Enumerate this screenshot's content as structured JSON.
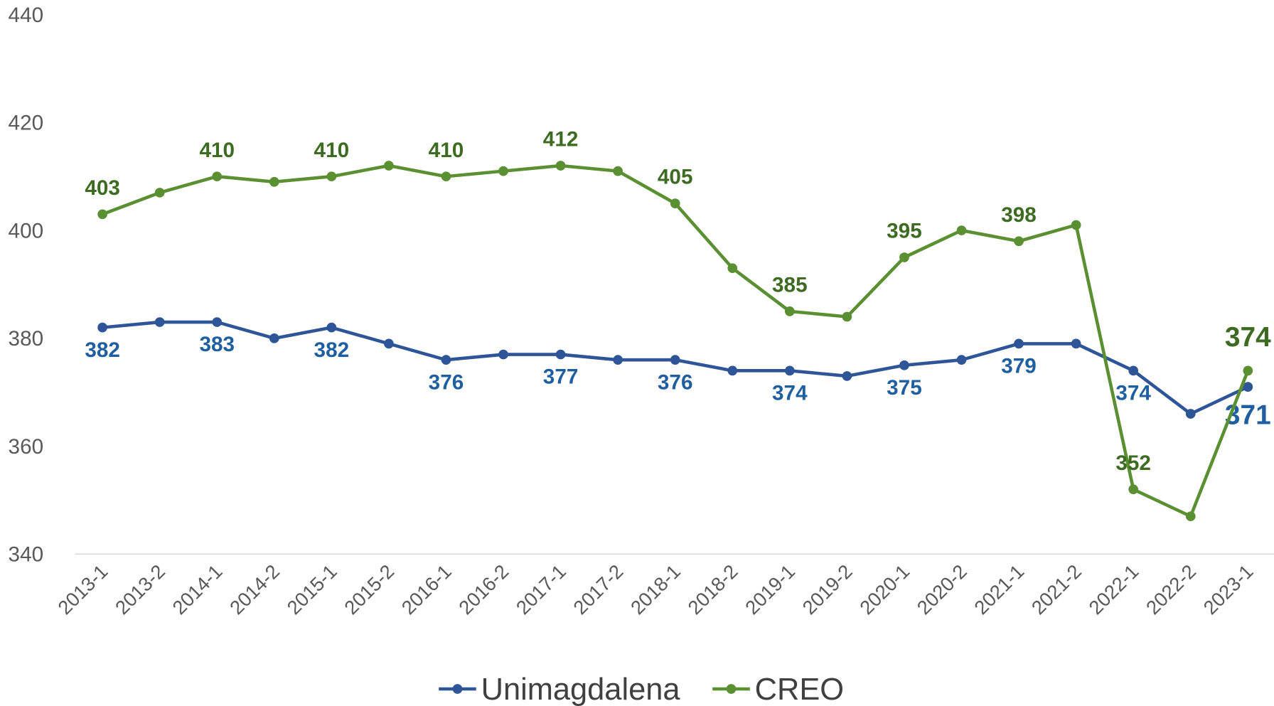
{
  "chart_data": {
    "type": "line",
    "categories": [
      "2013-1",
      "2013-2",
      "2014-1",
      "2014-2",
      "2015-1",
      "2015-2",
      "2016-1",
      "2016-2",
      "2017-1",
      "2017-2",
      "2018-1",
      "2018-2",
      "2019-1",
      "2019-2",
      "2020-1",
      "2020-2",
      "2021-1",
      "2021-2",
      "2022-1",
      "2022-2",
      "2023-1"
    ],
    "series": [
      {
        "name": "Unimagdalena",
        "color": "#2e5597",
        "label_color": "#1f5fa0",
        "label_position": "below",
        "values": [
          382,
          383,
          383,
          380,
          382,
          379,
          376,
          377,
          377,
          376,
          376,
          374,
          374,
          373,
          375,
          376,
          379,
          379,
          374,
          366,
          371
        ]
      },
      {
        "name": "CREO",
        "color": "#5a8f32",
        "label_color": "#3d6b22",
        "label_position": "above",
        "values": [
          403,
          407,
          410,
          409,
          410,
          412,
          410,
          411,
          412,
          411,
          405,
          393,
          385,
          384,
          395,
          400,
          398,
          401,
          352,
          347,
          374
        ]
      }
    ],
    "data_labels": "alternate",
    "ylim": [
      340,
      440
    ],
    "yticks": [
      340,
      360,
      380,
      400,
      420,
      440
    ],
    "grid": false,
    "legend": "bottom"
  }
}
